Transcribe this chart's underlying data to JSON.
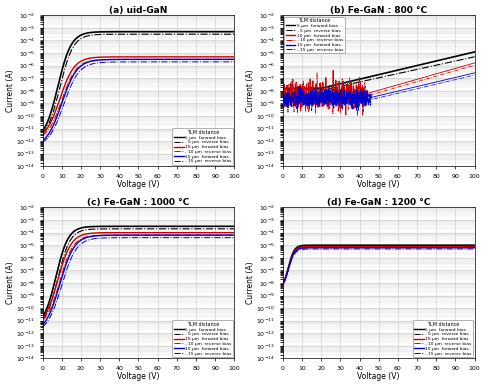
{
  "titles": [
    "(a) uid-GaN",
    "(b) Fe-GaN : 800 °C",
    "(c) Fe-GaN : 1000 °C",
    "(d) Fe-GaN : 1200 °C"
  ],
  "xlabel": "Voltage (V)",
  "ylabel": "Current (A)",
  "xlim": [
    0,
    100
  ],
  "ylim_log": [
    -14,
    -2
  ],
  "colors": {
    "5um": "#000000",
    "10um": "#cc0000",
    "15um": "#0000cc"
  },
  "legend_title": "TLM distance",
  "legend_entries": [
    "5 μm  forward bias",
    "- 5 μm  reverse bias",
    "10 μm  forward bias",
    "- 10 μm  reverse bias",
    "15 μm  forward bias",
    "- 15 μm  reverse bias"
  ],
  "background_color": "#ffffff",
  "grid_color": "#c8c8c8"
}
